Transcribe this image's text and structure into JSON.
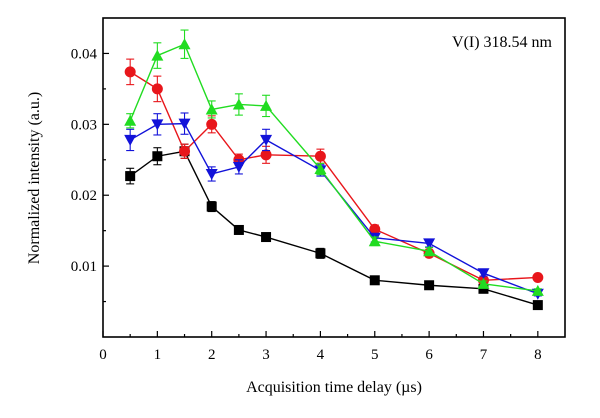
{
  "chart_data": {
    "type": "line",
    "annotation": "V(I) 318.54 nm",
    "xlabel": "Acquisition time delay (µs)",
    "ylabel": "Normalized intensity (a.u.)",
    "xlim": [
      0,
      8.5
    ],
    "ylim": [
      0,
      0.045
    ],
    "x_ticks": [
      0,
      1,
      2,
      3,
      4,
      5,
      6,
      7,
      8
    ],
    "x_tick_labels": [
      "0",
      "1",
      "2",
      "3",
      "4",
      "5",
      "6",
      "7",
      "8"
    ],
    "y_ticks": [
      0.01,
      0.02,
      0.03,
      0.04
    ],
    "y_tick_labels": [
      "0.01",
      "0.02",
      "0.03",
      "0.04"
    ],
    "grid": false,
    "series": [
      {
        "marker": "square",
        "color": "#000000",
        "x": [
          0.5,
          1,
          1.5,
          2,
          2.5,
          3,
          4,
          5,
          6,
          7,
          8
        ],
        "y": [
          0.0227,
          0.0255,
          0.0262,
          0.0184,
          0.0151,
          0.0141,
          0.0118,
          0.008,
          0.0073,
          0.0068,
          0.0045
        ],
        "err": [
          0.0011,
          0.0012,
          0.001,
          0.0007,
          0.0005,
          0.0004,
          0.0007,
          0.0003,
          0.0003,
          0.0003,
          0.0003
        ]
      },
      {
        "marker": "circle",
        "color": "#e8161b",
        "x": [
          0.5,
          1,
          1.5,
          2,
          2.5,
          3,
          4,
          5,
          6,
          7,
          8
        ],
        "y": [
          0.0374,
          0.035,
          0.0262,
          0.03,
          0.025,
          0.0257,
          0.0255,
          0.0152,
          0.0118,
          0.008,
          0.0084
        ],
        "err": [
          0.0018,
          0.0018,
          0.001,
          0.0012,
          0.0008,
          0.0012,
          0.001,
          0.0006,
          0.0005,
          0.0003,
          0.0003
        ]
      },
      {
        "marker": "triangle-down",
        "color": "#1212d9",
        "x": [
          0.5,
          1,
          1.5,
          2,
          2.5,
          3,
          4,
          5,
          6,
          7,
          8
        ],
        "y": [
          0.0278,
          0.03,
          0.0301,
          0.023,
          0.024,
          0.0278,
          0.0235,
          0.014,
          0.0132,
          0.009,
          0.0061
        ],
        "err": [
          0.0015,
          0.0015,
          0.0015,
          0.001,
          0.001,
          0.0015,
          0.0008,
          0.0006,
          0.0005,
          0.0004,
          0.0003
        ]
      },
      {
        "marker": "triangle-up",
        "color": "#21dc21",
        "x": [
          0.5,
          1,
          1.5,
          2,
          2.5,
          3,
          4,
          5,
          6,
          7,
          8
        ],
        "y": [
          0.0305,
          0.0397,
          0.0413,
          0.0321,
          0.0328,
          0.0326,
          0.0237,
          0.0135,
          0.0121,
          0.0075,
          0.0065
        ],
        "err": [
          0.001,
          0.0018,
          0.002,
          0.0012,
          0.0015,
          0.0015,
          0.0008,
          0.0006,
          0.0005,
          0.0004,
          0.0003
        ]
      }
    ]
  }
}
